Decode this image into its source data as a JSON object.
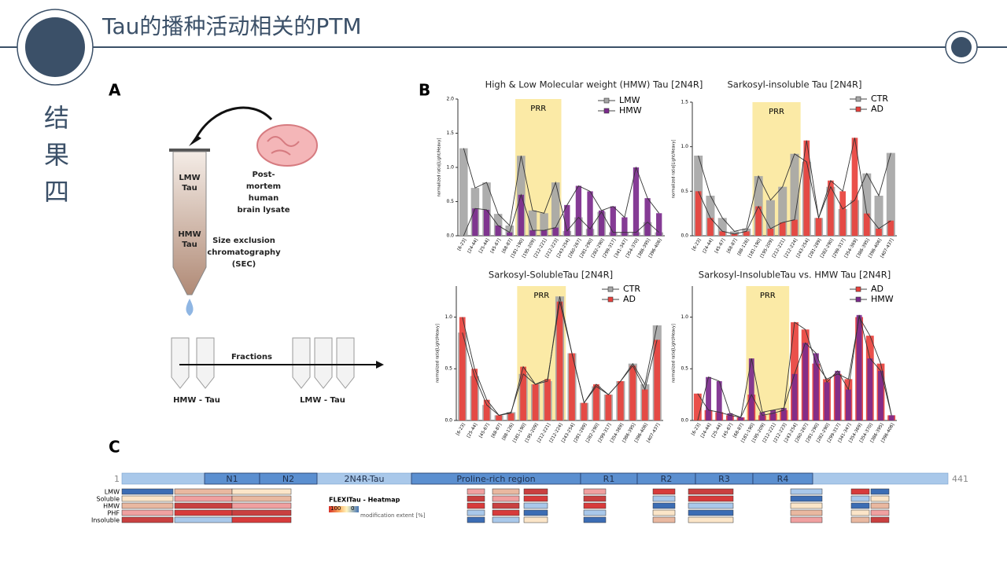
{
  "header": {
    "title": "Tau的播种活动相关的PTM",
    "section": [
      "结",
      "果",
      "四"
    ]
  },
  "panel_labels": {
    "a": "A",
    "b": "B",
    "c": "C"
  },
  "diagram": {
    "lmw_tau": [
      "LMW",
      "Tau"
    ],
    "hmw_tau": [
      "HMW",
      "Tau"
    ],
    "brain": [
      "Post-",
      "mortem",
      "human",
      "brain lysate"
    ],
    "sec": [
      "Size exclusion",
      "chromatography",
      "(SEC)"
    ],
    "fractions": "Fractions",
    "hmw_fraction": "HMW - Tau",
    "lmw_fraction": "LMW - Tau"
  },
  "chart_data": [
    {
      "type": "bar",
      "title": "High & Low Molecular weight (HMW) Tau [2N4R]",
      "ylabel": "normalized ratio[Light/Heavy]",
      "annotation": "PRR",
      "categories": [
        "[6-23]",
        "[24-44]",
        "[25-44]",
        "[45-67]",
        "[68-87]",
        "[181-190]",
        "[195-209]",
        "[212-221]",
        "[212-223]",
        "[243-254]",
        "[260-267]",
        "[281-290]",
        "[282-290]",
        "[299-317]",
        "[341-347]",
        "[354-370]",
        "[386-395]",
        "[396-406]"
      ],
      "series": [
        {
          "name": "LMW",
          "color": "#a6a6a6",
          "values": [
            1.28,
            0.7,
            0.78,
            0.32,
            0.15,
            1.17,
            0.37,
            0.33,
            0.78,
            0.07,
            0.27,
            0.1,
            0.35,
            0.05,
            0.05,
            0.05,
            0.2,
            0.05
          ]
        },
        {
          "name": "HMW",
          "color": "#7b2a8c",
          "values": [
            0,
            0.4,
            0.38,
            0.15,
            0.05,
            0.6,
            0.08,
            0.08,
            0.12,
            0.45,
            0.73,
            0.65,
            0.37,
            0.43,
            0.27,
            1.0,
            0.55,
            0.33
          ]
        }
      ],
      "ylim": [
        0,
        2
      ],
      "yticks": [
        {
          "value": 0,
          "label": "0.0"
        },
        {
          "value": 0.5,
          "label": "0.5"
        },
        {
          "value": 1,
          "label": "1.0"
        },
        {
          "value": 1.5,
          "label": "1.5"
        },
        {
          "value": 2,
          "label": "2.0"
        }
      ]
    },
    {
      "type": "bar",
      "title": "Sarkosyl-insoluble Tau [2N4R]",
      "ylabel": "normalized ratio[Light/Heavy]",
      "annotation": "PRR",
      "categories": [
        "[6-23]",
        "[24-44]",
        "[45-67]",
        "[68-87]",
        "[88-126]",
        "[181-190]",
        "[195-209]",
        "[212-221]",
        "[212-224]",
        "[243-254]",
        "[281-289]",
        "[282-290]",
        "[299-317]",
        "[354-369]",
        "[386-395]",
        "[396-406]",
        "[407-437]"
      ],
      "series": [
        {
          "name": "CTR",
          "color": "#a6a6a6",
          "values": [
            0.9,
            0.45,
            0.2,
            0.05,
            0.08,
            0.67,
            0.4,
            0.55,
            0.92,
            0.83,
            0.2,
            0.55,
            0.3,
            0.4,
            0.7,
            0.45,
            0.93
          ]
        },
        {
          "name": "AD",
          "color": "#e8413c",
          "values": [
            0.5,
            0.2,
            0.05,
            0.02,
            0.05,
            0.33,
            0.08,
            0.15,
            0.18,
            1.07,
            0.2,
            0.62,
            0.5,
            1.1,
            0.25,
            0.08,
            0.17
          ]
        }
      ],
      "ylim": [
        0,
        1.5
      ],
      "yticks": [
        {
          "value": 0,
          "label": "0.0"
        },
        {
          "value": 0.5,
          "label": "0.5"
        },
        {
          "value": 1,
          "label": "1.0"
        },
        {
          "value": 1.5,
          "label": "1.5"
        }
      ]
    },
    {
      "type": "bar",
      "title": "Sarkosyl-SolubleTau [2N4R]",
      "ylabel": "normalized ratio[Light/Heavy]",
      "annotation": "PRR",
      "categories": [
        "[6-23]",
        "[25-44]",
        "[45-67]",
        "[68-87]",
        "[88-126]",
        "[181-190]",
        "[195-209]",
        "[212-221]",
        "[212-224]",
        "[243-254]",
        "[281-289]",
        "[282-290]",
        "[299-317]",
        "[354-369]",
        "[386-395]",
        "[396-406]",
        "[407-437]"
      ],
      "series": [
        {
          "name": "CTR",
          "color": "#a6a6a6",
          "values": [
            0.85,
            0.43,
            0.15,
            0.05,
            0.08,
            0.45,
            0.35,
            0.38,
            1.2,
            0.65,
            0.17,
            0.33,
            0.25,
            0.38,
            0.55,
            0.35,
            0.92
          ]
        },
        {
          "name": "AD",
          "color": "#e8413c",
          "values": [
            1.0,
            0.5,
            0.2,
            0.05,
            0.07,
            0.52,
            0.35,
            0.4,
            1.15,
            0.65,
            0.17,
            0.35,
            0.25,
            0.38,
            0.53,
            0.3,
            0.78
          ]
        }
      ],
      "ylim": [
        0,
        1.3
      ],
      "yticks": [
        {
          "value": 0,
          "label": "0.0"
        },
        {
          "value": 0.5,
          "label": "0.5"
        },
        {
          "value": 1,
          "label": "1.0"
        }
      ]
    },
    {
      "type": "bar",
      "title": "Sarkosyl-InsolubleTau vs. HMW Tau [2N4R]",
      "ylabel": "normalized ratio[Light/Heavy]",
      "annotation": "PRR",
      "categories": [
        "[6-23]",
        "[24-44]",
        "[25-44]",
        "[45-67]",
        "[68-87]",
        "[181-190]",
        "[195-209]",
        "[212-221]",
        "[212-223]",
        "[243-254]",
        "[260-267]",
        "[281-290]",
        "[282-290]",
        "[299-317]",
        "[341-347]",
        "[354-369]",
        "[354-370]",
        "[386-395]",
        "[396-406]"
      ],
      "series": [
        {
          "name": "AD",
          "color": "#e8413c",
          "values": [
            0.26,
            0.1,
            0.08,
            0.05,
            0.03,
            0.25,
            0.05,
            0.07,
            0.1,
            0.95,
            0.88,
            0.55,
            0.4,
            0.45,
            0.4,
            1.0,
            0.82,
            0.55,
            0.05
          ]
        },
        {
          "name": "HMW",
          "color": "#7b2a8c",
          "values": [
            0,
            0.42,
            0.38,
            0.07,
            0.03,
            0.6,
            0.08,
            0.1,
            0.12,
            0.45,
            0.75,
            0.65,
            0.37,
            0.48,
            0.3,
            1.02,
            0.6,
            0.48,
            0.05
          ]
        }
      ],
      "ylim": [
        0,
        1.3
      ],
      "yticks": [
        {
          "value": 0,
          "label": "0.0"
        },
        {
          "value": 0.5,
          "label": "0.5"
        },
        {
          "value": 1,
          "label": "1.0"
        }
      ]
    }
  ],
  "domain_map": {
    "start": "1",
    "end": "441",
    "segments": [
      "N1",
      "N2",
      "2N4R-Tau",
      "Proline-rich region",
      "R1",
      "R2",
      "R3",
      "R4"
    ]
  },
  "heatmap": {
    "rows": [
      "LMW",
      "Soluble",
      "HMW",
      "PHF",
      "Insoluble"
    ],
    "title": "FLEXITau - Heatmap",
    "scale_max": "100",
    "scale_min": "0",
    "scale_label": "modification extent [%]"
  }
}
